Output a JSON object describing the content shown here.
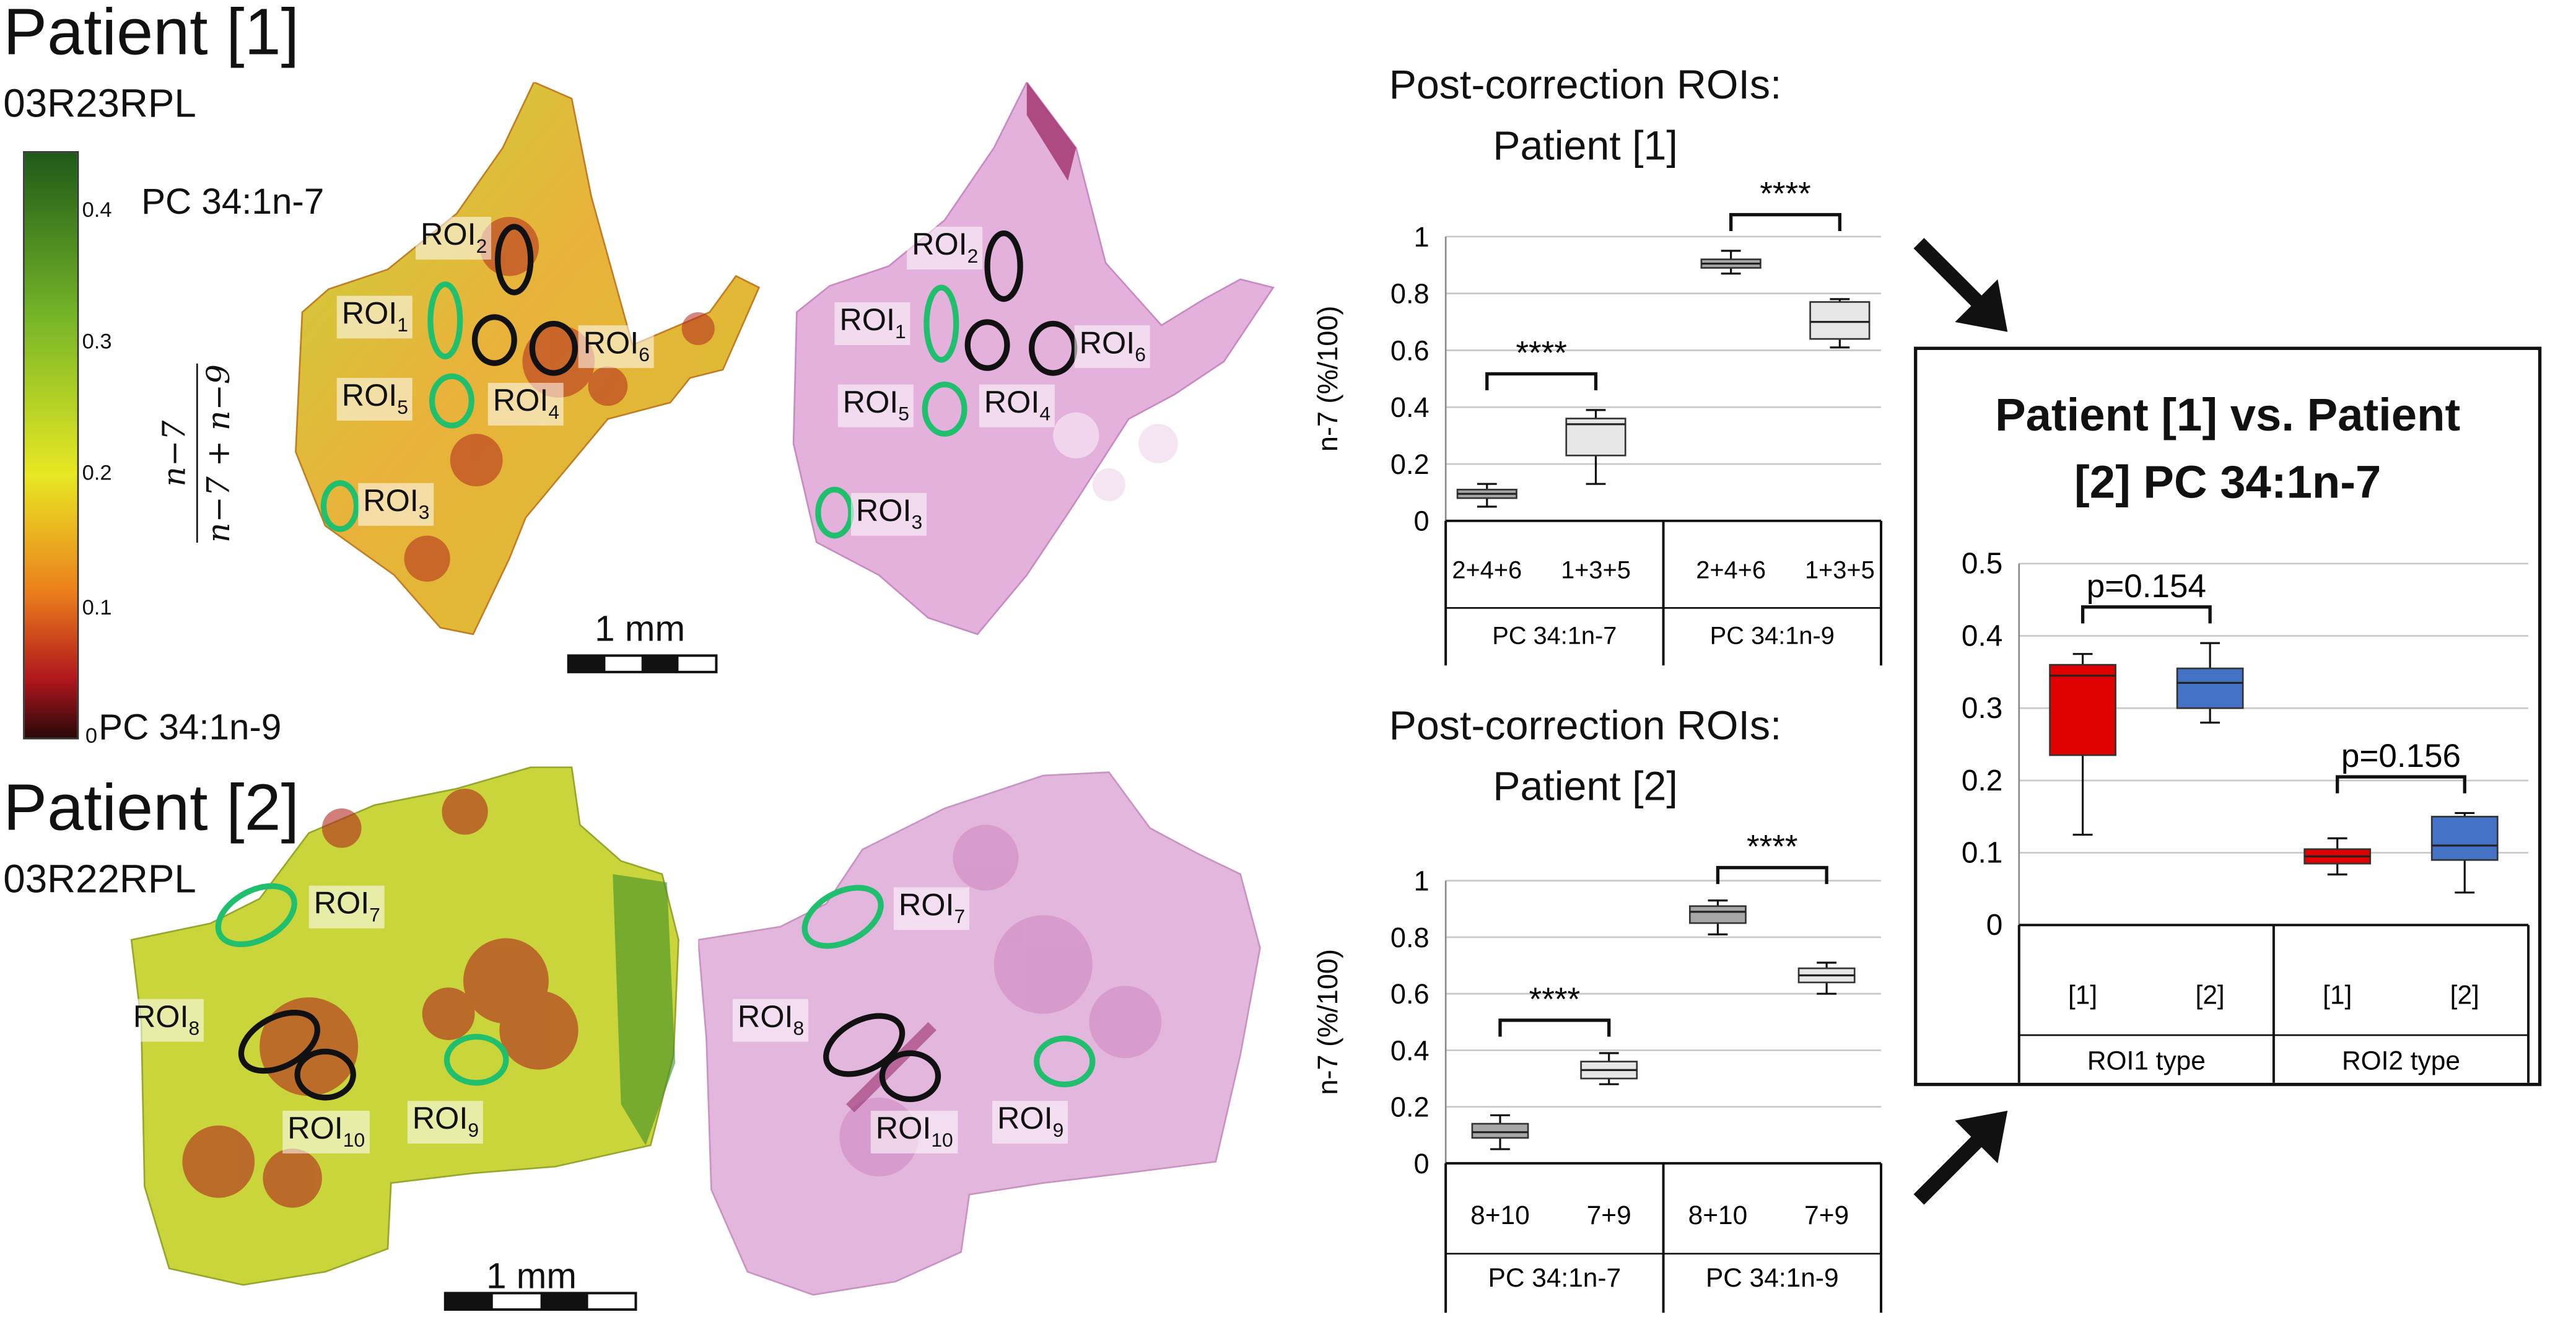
{
  "panels": {
    "p1_title": "Patient [1]",
    "p1_code": "03R23RPL",
    "p2_title": "Patient [2]",
    "p2_code": "03R22RPL"
  },
  "colorbar": {
    "ticks": [
      "0.4",
      "0.3",
      "0.2",
      "0.1",
      "0"
    ],
    "top_label": "PC 34:1n-7",
    "bottom_label": "PC 34:1n-9",
    "formula_num": "n−7",
    "formula_den": "n−7 + n−9",
    "colors": [
      "#1e5a18",
      "#76b528",
      "#e8e823",
      "#ec7f1c",
      "#b0161c",
      "#2a0808"
    ]
  },
  "scale_bars": [
    {
      "label": "1 mm"
    },
    {
      "label": "1 mm"
    }
  ],
  "rois": {
    "p1_ms": [
      "ROI",
      "ROI",
      "ROI",
      "ROI",
      "ROI",
      "ROI"
    ],
    "p1_ms_sub": [
      "2",
      "1",
      "6",
      "5",
      "4",
      "3"
    ],
    "p1_he": [
      "ROI",
      "ROI",
      "ROI",
      "ROI",
      "ROI",
      "ROI"
    ],
    "p1_he_sub": [
      "2",
      "1",
      "6",
      "5",
      "4",
      "3"
    ],
    "p2_ms": [
      "ROI",
      "ROI",
      "ROI",
      "ROI"
    ],
    "p2_ms_sub": [
      "7",
      "8",
      "10",
      "9"
    ],
    "p2_he": [
      "ROI",
      "ROI",
      "ROI",
      "ROI"
    ],
    "p2_he_sub": [
      "7",
      "8",
      "10",
      "9"
    ],
    "ring_colors": {
      "roi1_type": "#1fbf6e",
      "roi2_type": "#111111"
    }
  },
  "chart_data": [
    {
      "type": "box",
      "title": "Post-correction ROIs: Patient [1]",
      "title_line1": "Post-correction ROIs:",
      "title_line2": "Patient [1]",
      "ylabel": "n-7 (%/100)",
      "ylim": [
        0,
        1
      ],
      "yticks": [
        "1",
        "0.8",
        "0.6",
        "0.4",
        "0.2",
        "0"
      ],
      "grid": true,
      "groups": [
        "PC 34:1n-7",
        "PC 34:1n-9"
      ],
      "categories": [
        "2+4+6",
        "1+3+5",
        "2+4+6",
        "1+3+5"
      ],
      "boxes": [
        {
          "category": "2+4+6",
          "group": "PC 34:1n-7",
          "min": 0.05,
          "q1": 0.08,
          "median": 0.095,
          "q3": 0.11,
          "max": 0.13
        },
        {
          "category": "1+3+5",
          "group": "PC 34:1n-7",
          "min": 0.13,
          "q1": 0.23,
          "median": 0.34,
          "q3": 0.36,
          "max": 0.39
        },
        {
          "category": "2+4+6",
          "group": "PC 34:1n-9",
          "min": 0.87,
          "q1": 0.89,
          "median": 0.905,
          "q3": 0.92,
          "max": 0.95
        },
        {
          "category": "1+3+5",
          "group": "PC 34:1n-9",
          "min": 0.61,
          "q1": 0.64,
          "median": 0.7,
          "q3": 0.77,
          "max": 0.78
        }
      ],
      "significance": [
        "****",
        "****"
      ],
      "box_colors": [
        "#a6a6a6",
        "#e6e6e6"
      ]
    },
    {
      "type": "box",
      "title": "Post-correction ROIs: Patient [2]",
      "title_line1": "Post-correction ROIs:",
      "title_line2": "Patient [2]",
      "ylabel": "n-7 (%/100)",
      "ylim": [
        0,
        1
      ],
      "yticks": [
        "1",
        "0.8",
        "0.6",
        "0.4",
        "0.2",
        "0"
      ],
      "grid": true,
      "groups": [
        "PC 34:1n-7",
        "PC 34:1n-9"
      ],
      "categories": [
        "8+10",
        "7+9",
        "8+10",
        "7+9"
      ],
      "boxes": [
        {
          "category": "8+10",
          "group": "PC 34:1n-7",
          "min": 0.05,
          "q1": 0.09,
          "median": 0.11,
          "q3": 0.14,
          "max": 0.17
        },
        {
          "category": "7+9",
          "group": "PC 34:1n-7",
          "min": 0.28,
          "q1": 0.3,
          "median": 0.33,
          "q3": 0.36,
          "max": 0.39
        },
        {
          "category": "8+10",
          "group": "PC 34:1n-9",
          "min": 0.81,
          "q1": 0.85,
          "median": 0.89,
          "q3": 0.91,
          "max": 0.93
        },
        {
          "category": "7+9",
          "group": "PC 34:1n-9",
          "min": 0.6,
          "q1": 0.64,
          "median": 0.665,
          "q3": 0.69,
          "max": 0.71
        }
      ],
      "significance": [
        "****",
        "****"
      ],
      "box_colors": [
        "#a6a6a6",
        "#e6e6e6"
      ]
    },
    {
      "type": "box",
      "title": "Patient [1] vs. Patient [2] PC 34:1n-7",
      "title_line1": "Patient [1] vs. Patient",
      "title_line2": "[2] PC 34:1n-7",
      "ylim": [
        0,
        0.5
      ],
      "yticks": [
        "0.5",
        "0.4",
        "0.3",
        "0.2",
        "0.1",
        "0"
      ],
      "grid": true,
      "groups": [
        "ROI1 type",
        "ROI2 type"
      ],
      "categories": [
        "[1]",
        "[2]",
        "[1]",
        "[2]"
      ],
      "boxes": [
        {
          "category": "[1]",
          "group": "ROI1 type",
          "min": 0.125,
          "q1": 0.235,
          "median": 0.345,
          "q3": 0.36,
          "max": 0.375
        },
        {
          "category": "[2]",
          "group": "ROI1 type",
          "min": 0.28,
          "q1": 0.3,
          "median": 0.335,
          "q3": 0.355,
          "max": 0.39
        },
        {
          "category": "[1]",
          "group": "ROI2 type",
          "min": 0.07,
          "q1": 0.085,
          "median": 0.095,
          "q3": 0.105,
          "max": 0.12
        },
        {
          "category": "[2]",
          "group": "ROI2 type",
          "min": 0.045,
          "q1": 0.09,
          "median": 0.11,
          "q3": 0.15,
          "max": 0.155
        }
      ],
      "pvalues": [
        "p=0.154",
        "p=0.156"
      ],
      "box_colors": [
        "#e00000",
        "#4472c4"
      ]
    }
  ]
}
